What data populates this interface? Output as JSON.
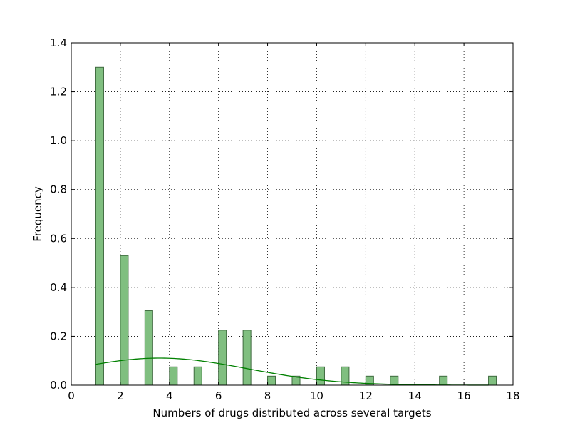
{
  "chart_data": {
    "type": "bar",
    "title": "",
    "xlabel": "Numbers of drugs distributed across several targets",
    "ylabel": "Frequency",
    "xlim": [
      0,
      18
    ],
    "ylim": [
      0,
      1.4
    ],
    "grid": true,
    "legend": "none",
    "x_ticks": [
      "0",
      "2",
      "4",
      "6",
      "8",
      "10",
      "12",
      "14",
      "16",
      "18"
    ],
    "y_ticks": [
      "0.0",
      "0.2",
      "0.4",
      "0.6",
      "0.8",
      "1.0",
      "1.2",
      "1.4"
    ],
    "bar_width": 0.32,
    "bars": [
      {
        "x": 1,
        "value": 1.3
      },
      {
        "x": 2,
        "value": 0.53
      },
      {
        "x": 3,
        "value": 0.305
      },
      {
        "x": 4,
        "value": 0.075
      },
      {
        "x": 5,
        "value": 0.075
      },
      {
        "x": 6,
        "value": 0.225
      },
      {
        "x": 7,
        "value": 0.225
      },
      {
        "x": 8,
        "value": 0.037
      },
      {
        "x": 9,
        "value": 0.037
      },
      {
        "x": 10,
        "value": 0.075
      },
      {
        "x": 11,
        "value": 0.075
      },
      {
        "x": 12,
        "value": 0.037
      },
      {
        "x": 13,
        "value": 0.037
      },
      {
        "x": 15,
        "value": 0.037
      },
      {
        "x": 17,
        "value": 0.037
      }
    ],
    "curve": {
      "type": "normal-density",
      "mean": 3.6,
      "std": 3.6,
      "x_range": [
        1,
        17
      ]
    },
    "colors": {
      "bar_fill": "#80bf80",
      "bar_edge": "#3f6a3f",
      "curve": "#008000",
      "grid": "#000000",
      "axis": "#000000"
    }
  }
}
